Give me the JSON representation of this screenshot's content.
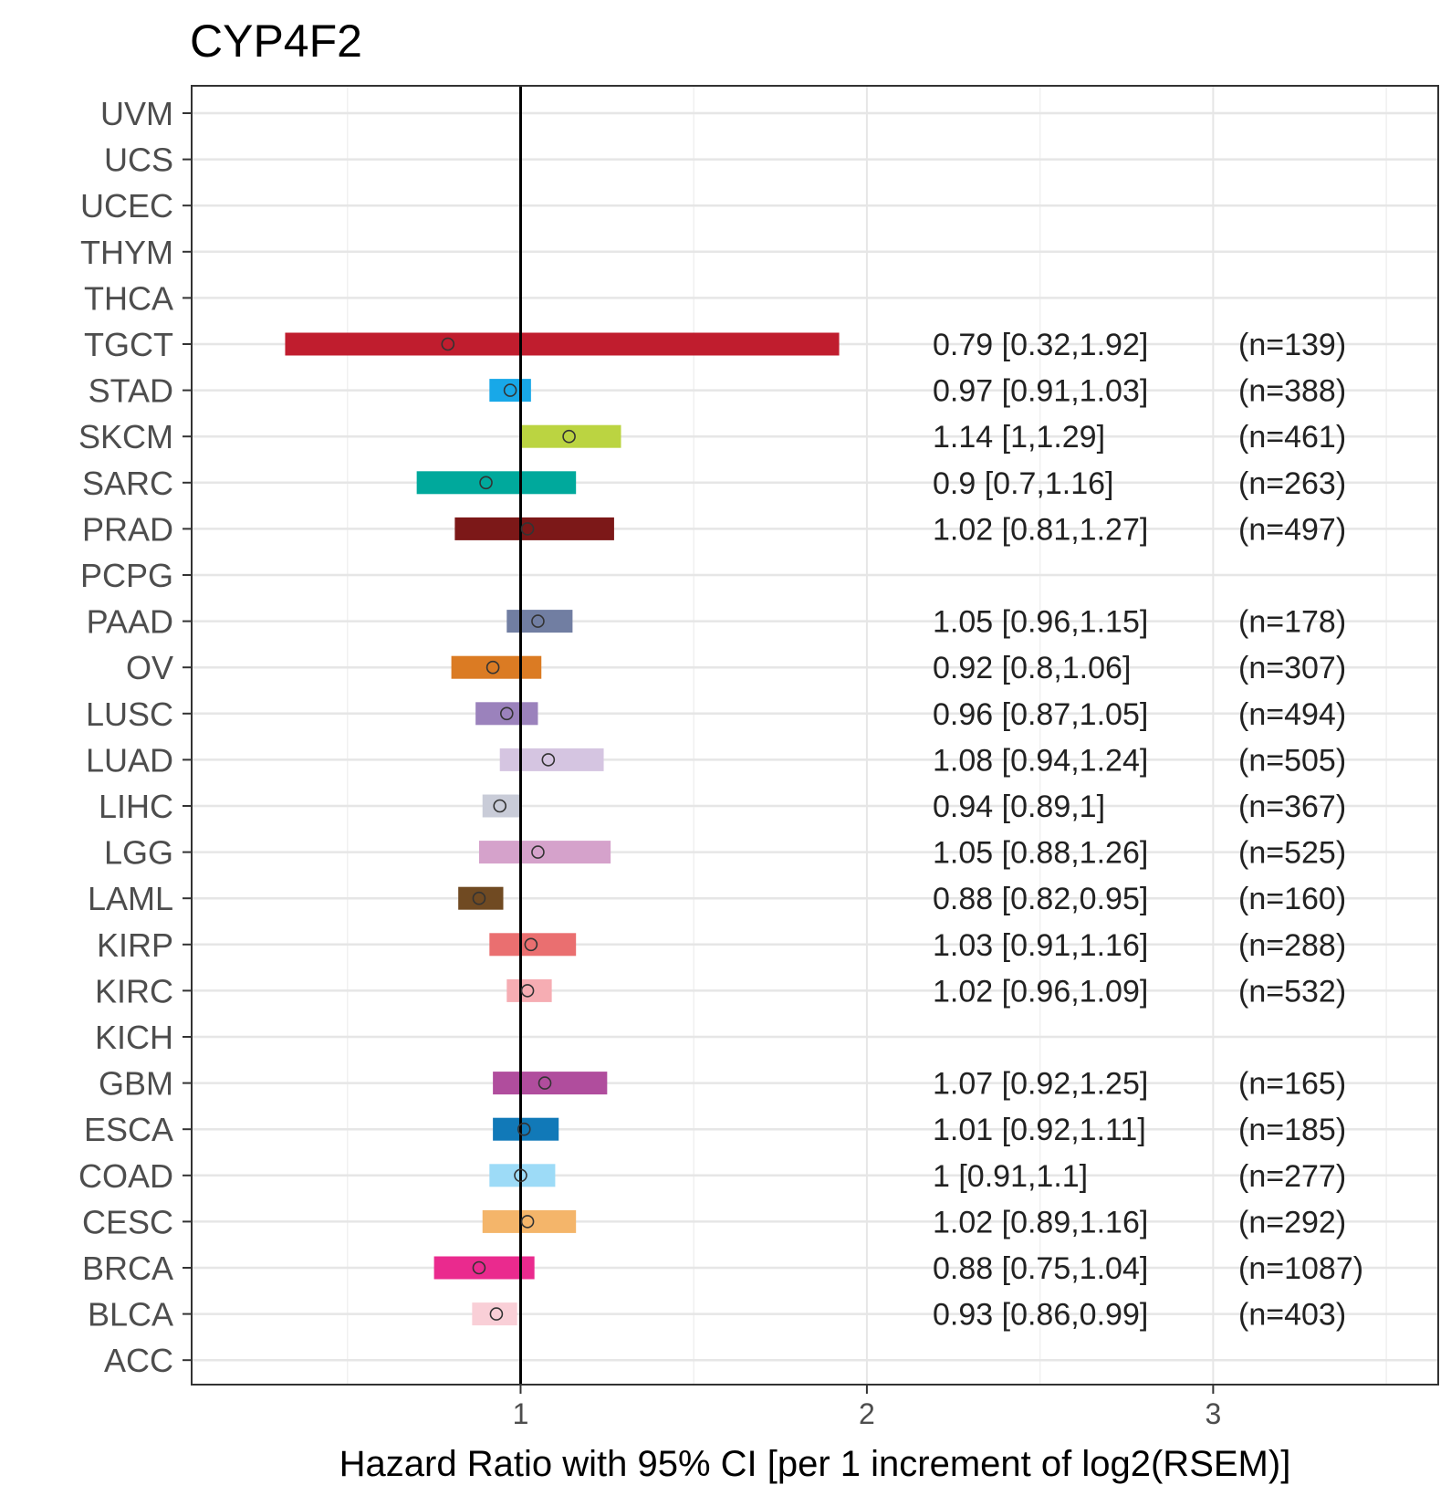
{
  "chart_data": {
    "type": "forest",
    "title": "CYP4F2",
    "xlabel": "Hazard Ratio with 95% CI [per 1 increment of log2(RSEM)]",
    "ylabel": "",
    "xlim": [
      0.05,
      3.65
    ],
    "xticks": [
      1,
      2,
      3
    ],
    "reference_line": 1,
    "grid": true,
    "rows": [
      {
        "cancer": "UVM"
      },
      {
        "cancer": "UCS"
      },
      {
        "cancer": "UCEC"
      },
      {
        "cancer": "THYM"
      },
      {
        "cancer": "THCA"
      },
      {
        "cancer": "TGCT",
        "hr": 0.79,
        "lo": 0.32,
        "hi": 1.92,
        "label": "0.79 [0.32,1.92]",
        "n": "(n=139)",
        "color": "#C01D2E"
      },
      {
        "cancer": "STAD",
        "hr": 0.97,
        "lo": 0.91,
        "hi": 1.03,
        "label": "0.97 [0.91,1.03]",
        "n": "(n=388)",
        "color": "#18A8E8"
      },
      {
        "cancer": "SKCM",
        "hr": 1.14,
        "lo": 1,
        "hi": 1.29,
        "label": "1.14 [1,1.29]",
        "n": "(n=461)",
        "color": "#BBD441"
      },
      {
        "cancer": "SARC",
        "hr": 0.9,
        "lo": 0.7,
        "hi": 1.16,
        "label": "0.9 [0.7,1.16]",
        "n": "(n=263)",
        "color": "#00A99C"
      },
      {
        "cancer": "PRAD",
        "hr": 1.02,
        "lo": 0.81,
        "hi": 1.27,
        "label": "1.02 [0.81,1.27]",
        "n": "(n=497)",
        "color": "#7C1818"
      },
      {
        "cancer": "PCPG"
      },
      {
        "cancer": "PAAD",
        "hr": 1.05,
        "lo": 0.96,
        "hi": 1.15,
        "label": "1.05 [0.96,1.15]",
        "n": "(n=178)",
        "color": "#717EA2"
      },
      {
        "cancer": "OV",
        "hr": 0.92,
        "lo": 0.8,
        "hi": 1.06,
        "label": "0.92 [0.8,1.06]",
        "n": "(n=307)",
        "color": "#DB7B23"
      },
      {
        "cancer": "LUSC",
        "hr": 0.96,
        "lo": 0.87,
        "hi": 1.05,
        "label": "0.96 [0.87,1.05]",
        "n": "(n=494)",
        "color": "#9B82BC"
      },
      {
        "cancer": "LUAD",
        "hr": 1.08,
        "lo": 0.94,
        "hi": 1.24,
        "label": "1.08 [0.94,1.24]",
        "n": "(n=505)",
        "color": "#D5C5E1"
      },
      {
        "cancer": "LIHC",
        "hr": 0.94,
        "lo": 0.89,
        "hi": 1,
        "label": "0.94 [0.89,1]",
        "n": "(n=367)",
        "color": "#C9CCD8"
      },
      {
        "cancer": "LGG",
        "hr": 1.05,
        "lo": 0.88,
        "hi": 1.26,
        "label": "1.05 [0.88,1.26]",
        "n": "(n=525)",
        "color": "#D5A2CB"
      },
      {
        "cancer": "LAML",
        "hr": 0.88,
        "lo": 0.82,
        "hi": 0.95,
        "label": "0.88 [0.82,0.95]",
        "n": "(n=160)",
        "color": "#704A22"
      },
      {
        "cancer": "KIRP",
        "hr": 1.03,
        "lo": 0.91,
        "hi": 1.16,
        "label": "1.03 [0.91,1.16]",
        "n": "(n=288)",
        "color": "#EA6F70"
      },
      {
        "cancer": "KIRC",
        "hr": 1.02,
        "lo": 0.96,
        "hi": 1.09,
        "label": "1.02 [0.96,1.09]",
        "n": "(n=532)",
        "color": "#F6ADB3"
      },
      {
        "cancer": "KICH"
      },
      {
        "cancer": "GBM",
        "hr": 1.07,
        "lo": 0.92,
        "hi": 1.25,
        "label": "1.07 [0.92,1.25]",
        "n": "(n=165)",
        "color": "#B04D9D"
      },
      {
        "cancer": "ESCA",
        "hr": 1.01,
        "lo": 0.92,
        "hi": 1.11,
        "label": "1.01 [0.92,1.11]",
        "n": "(n=185)",
        "color": "#1179B8"
      },
      {
        "cancer": "COAD",
        "hr": 1,
        "lo": 0.91,
        "hi": 1.1,
        "label": "1 [0.91,1.1]",
        "n": "(n=277)",
        "color": "#9DDBF7"
      },
      {
        "cancer": "CESC",
        "hr": 1.02,
        "lo": 0.89,
        "hi": 1.16,
        "label": "1.02 [0.89,1.16]",
        "n": "(n=292)",
        "color": "#F4B56A"
      },
      {
        "cancer": "BRCA",
        "hr": 0.88,
        "lo": 0.75,
        "hi": 1.04,
        "label": "0.88 [0.75,1.04]",
        "n": "(n=1087)",
        "color": "#EA2A8E"
      },
      {
        "cancer": "BLCA",
        "hr": 0.93,
        "lo": 0.86,
        "hi": 0.99,
        "label": "0.93 [0.86,0.99]",
        "n": "(n=403)",
        "color": "#F9CFD7"
      },
      {
        "cancer": "ACC"
      }
    ]
  }
}
